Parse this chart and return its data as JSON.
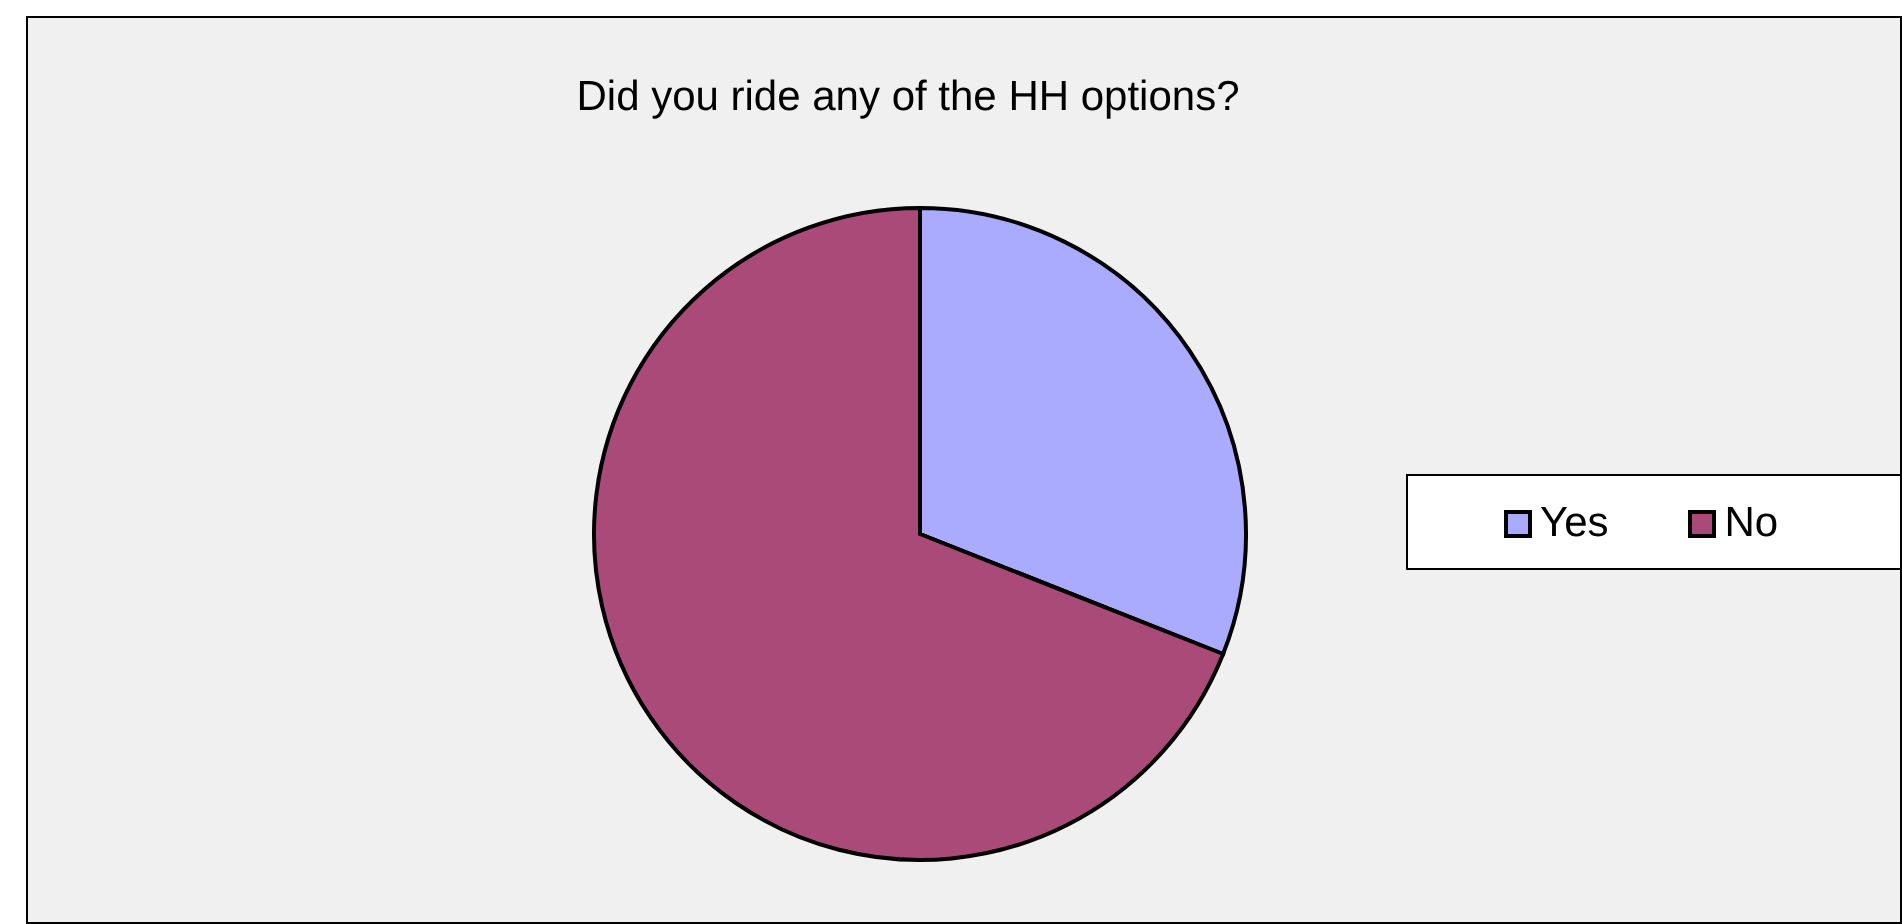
{
  "chart_data": {
    "type": "pie",
    "title": "Did you ride any of the HH options?",
    "categories": [
      "Yes",
      "No"
    ],
    "values": [
      31,
      69
    ],
    "colors": [
      "#aaaaff",
      "#aa4a78"
    ],
    "legend": "right"
  }
}
